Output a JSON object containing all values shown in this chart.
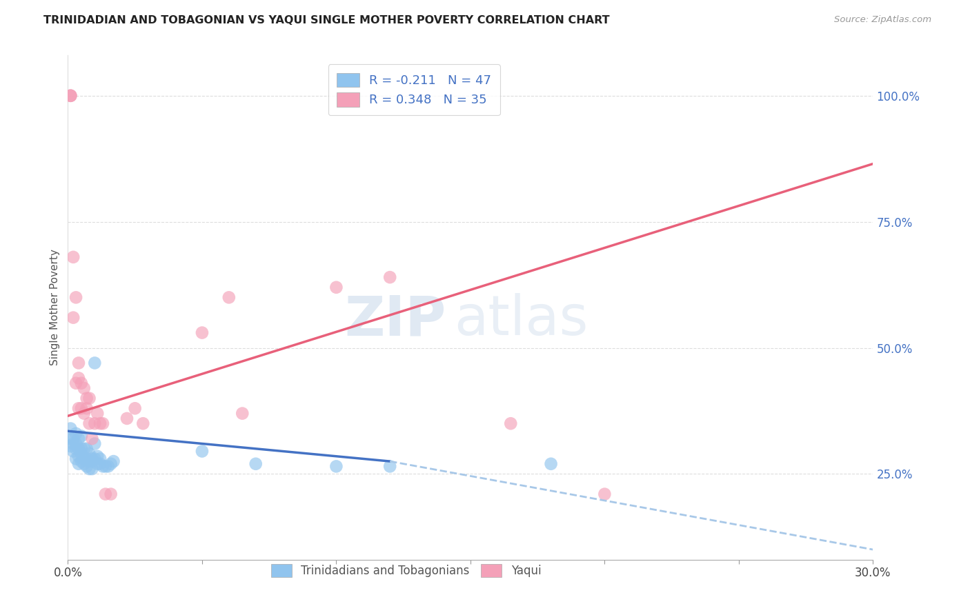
{
  "title": "TRINIDADIAN AND TOBAGONIAN VS YAQUI SINGLE MOTHER POVERTY CORRELATION CHART",
  "source": "Source: ZipAtlas.com",
  "ylabel": "Single Mother Poverty",
  "y_ticks": [
    0.25,
    0.5,
    0.75,
    1.0
  ],
  "y_tick_labels": [
    "25.0%",
    "50.0%",
    "75.0%",
    "100.0%"
  ],
  "x_ticks": [
    0.0,
    0.05,
    0.1,
    0.15,
    0.2,
    0.25,
    0.3
  ],
  "xlim": [
    0.0,
    0.3
  ],
  "ylim": [
    0.08,
    1.08
  ],
  "blue_color": "#90C4EE",
  "pink_color": "#F4A0B8",
  "blue_line_color": "#4472C4",
  "pink_line_color": "#E8607A",
  "dashed_line_color": "#A8C8E8",
  "legend_blue_label": "R = -0.211   N = 47",
  "legend_pink_label": "R = 0.348   N = 35",
  "scatter_blue_x": [
    0.001,
    0.001,
    0.001,
    0.002,
    0.002,
    0.002,
    0.003,
    0.003,
    0.003,
    0.003,
    0.004,
    0.004,
    0.004,
    0.004,
    0.005,
    0.005,
    0.005,
    0.005,
    0.006,
    0.006,
    0.006,
    0.007,
    0.007,
    0.007,
    0.008,
    0.008,
    0.008,
    0.009,
    0.009,
    0.009,
    0.01,
    0.01,
    0.01,
    0.011,
    0.011,
    0.012,
    0.012,
    0.013,
    0.014,
    0.015,
    0.016,
    0.017,
    0.05,
    0.07,
    0.1,
    0.12,
    0.18
  ],
  "scatter_blue_y": [
    0.34,
    0.305,
    0.32,
    0.31,
    0.295,
    0.32,
    0.28,
    0.3,
    0.31,
    0.33,
    0.27,
    0.285,
    0.3,
    0.32,
    0.275,
    0.29,
    0.3,
    0.325,
    0.27,
    0.28,
    0.3,
    0.265,
    0.28,
    0.3,
    0.26,
    0.275,
    0.29,
    0.26,
    0.275,
    0.28,
    0.47,
    0.31,
    0.28,
    0.285,
    0.27,
    0.27,
    0.28,
    0.265,
    0.265,
    0.265,
    0.27,
    0.275,
    0.295,
    0.27,
    0.265,
    0.265,
    0.27
  ],
  "scatter_pink_x": [
    0.001,
    0.001,
    0.001,
    0.002,
    0.002,
    0.003,
    0.003,
    0.004,
    0.004,
    0.004,
    0.005,
    0.005,
    0.006,
    0.006,
    0.007,
    0.007,
    0.008,
    0.008,
    0.009,
    0.01,
    0.011,
    0.012,
    0.013,
    0.014,
    0.016,
    0.022,
    0.025,
    0.028,
    0.05,
    0.06,
    0.065,
    0.1,
    0.12,
    0.165,
    0.2
  ],
  "scatter_pink_y": [
    1.0,
    1.0,
    1.0,
    0.68,
    0.56,
    0.43,
    0.6,
    0.38,
    0.47,
    0.44,
    0.38,
    0.43,
    0.37,
    0.42,
    0.38,
    0.4,
    0.35,
    0.4,
    0.32,
    0.35,
    0.37,
    0.35,
    0.35,
    0.21,
    0.21,
    0.36,
    0.38,
    0.35,
    0.53,
    0.6,
    0.37,
    0.62,
    0.64,
    0.35,
    0.21
  ],
  "blue_line_x": [
    0.0,
    0.12
  ],
  "blue_line_y": [
    0.335,
    0.275
  ],
  "dashed_line_x": [
    0.12,
    0.3
  ],
  "dashed_line_y": [
    0.275,
    0.1
  ],
  "pink_line_x": [
    0.0,
    0.3
  ],
  "pink_line_y": [
    0.365,
    0.865
  ],
  "watermark_zip": "ZIP",
  "watermark_atlas": "atlas",
  "bottom_legend_blue": "Trinidadians and Tobagonians",
  "bottom_legend_pink": "Yaqui",
  "background_color": "#FFFFFF",
  "grid_color": "#DDDDDD"
}
